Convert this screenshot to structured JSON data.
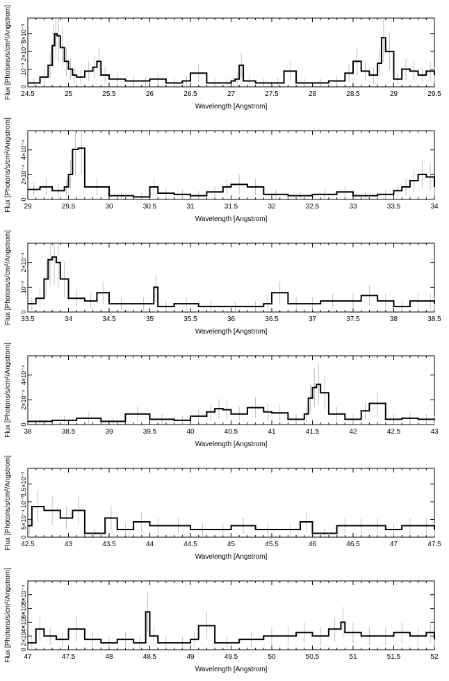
{
  "chart_data": [
    {
      "type": "line",
      "step": true,
      "xlim": [
        24.5,
        29.5
      ],
      "ylim": [
        0,
        0.0035
      ],
      "xticks": [
        24.5,
        25,
        25.5,
        26,
        26.5,
        27,
        27.5,
        28,
        28.5,
        29,
        29.5
      ],
      "xtick_labels": [
        "24.5",
        "25",
        "25.5",
        "26",
        "26.5",
        "27",
        "27.5",
        "28",
        "28.5",
        "29",
        "29.5"
      ],
      "ytick_labels": [
        "0",
        "10⁻³",
        "2×10⁻³",
        "3×10⁻³"
      ],
      "xlabel": "Wavelength [Angstrom]",
      "ylabel": "Flux [Photons/s/cm²/Angstrom]",
      "x": [
        24.5,
        24.65,
        24.75,
        24.8,
        24.83,
        24.86,
        24.9,
        24.95,
        25.0,
        25.05,
        25.1,
        25.2,
        25.3,
        25.35,
        25.4,
        25.5,
        25.7,
        25.9,
        26.0,
        26.2,
        26.4,
        26.5,
        26.7,
        26.9,
        27.0,
        27.05,
        27.1,
        27.15,
        27.3,
        27.5,
        27.65,
        27.8,
        28.0,
        28.2,
        28.4,
        28.5,
        28.6,
        28.7,
        28.8,
        28.85,
        28.9,
        29.0,
        29.1,
        29.2,
        29.3,
        29.4,
        29.5
      ],
      "y": [
        0.0002,
        0.0005,
        0.0011,
        0.0021,
        0.0027,
        0.0026,
        0.002,
        0.0013,
        0.0009,
        0.0006,
        0.0005,
        0.0008,
        0.001,
        0.0013,
        0.0006,
        0.0004,
        0.0003,
        0.0003,
        0.0004,
        0.0002,
        0.0003,
        0.0007,
        0.0002,
        0.0002,
        0.0003,
        0.0004,
        0.0011,
        0.0003,
        0.0002,
        0.0002,
        0.0008,
        0.0002,
        0.0002,
        0.0003,
        0.0007,
        0.0013,
        0.0008,
        0.0006,
        0.0012,
        0.0025,
        0.0018,
        0.0004,
        0.0009,
        0.0008,
        0.0006,
        0.0008,
        0.0006
      ]
    },
    {
      "type": "line",
      "step": true,
      "xlim": [
        29,
        34
      ],
      "ylim": [
        0,
        0.00055
      ],
      "xticks": [
        29,
        29.5,
        30,
        30.5,
        31,
        31.5,
        32,
        32.5,
        33,
        33.5,
        34
      ],
      "xtick_labels": [
        "29",
        "29.5",
        "30",
        "30.5",
        "31",
        "31.5",
        "32",
        "32.5",
        "33",
        "33.5",
        "34"
      ],
      "ytick_labels": [
        "0",
        "2×10⁻⁴",
        "4×10⁻⁴"
      ],
      "xlabel": "Wavelength [Angstrom]",
      "ylabel": "Flux [Photons/s/cm²/Angstrom]",
      "x": [
        29.0,
        29.15,
        29.3,
        29.45,
        29.5,
        29.55,
        29.62,
        29.7,
        30.0,
        30.3,
        30.5,
        30.6,
        30.8,
        31.0,
        31.2,
        31.4,
        31.5,
        31.7,
        31.9,
        32.2,
        32.5,
        32.8,
        33.0,
        33.3,
        33.5,
        33.6,
        33.7,
        33.8,
        33.9,
        34.0
      ],
      "y": [
        8e-05,
        0.0001,
        7e-05,
        0.0001,
        0.0002,
        0.0004,
        0.00041,
        0.0001,
        3e-05,
        2e-05,
        0.0001,
        5e-05,
        4e-05,
        3e-05,
        6e-05,
        0.0001,
        0.00012,
        0.0001,
        4e-05,
        3e-05,
        4e-05,
        6e-05,
        3e-05,
        4e-05,
        7e-05,
        0.0001,
        0.00015,
        0.0002,
        0.00018,
        0.0001
      ]
    },
    {
      "type": "line",
      "step": true,
      "xlim": [
        33.5,
        38.5
      ],
      "ylim": [
        0,
        0.0025
      ],
      "xticks": [
        33.5,
        34,
        34.5,
        35,
        35.5,
        36,
        36.5,
        37,
        37.5,
        38,
        38.5
      ],
      "xtick_labels": [
        "33.5",
        "34",
        "34.5",
        "35",
        "35.5",
        "36",
        "36.5",
        "37",
        "37.5",
        "38",
        "38.5"
      ],
      "ytick_labels": [
        "0",
        "10⁻³",
        "2×10⁻³"
      ],
      "xlabel": "Wavelength [Angstrom]",
      "ylabel": "Flux [Photons/s/cm²/Angstrom]",
      "x": [
        33.5,
        33.6,
        33.7,
        33.75,
        33.8,
        33.85,
        33.9,
        34.0,
        34.2,
        34.35,
        34.5,
        34.8,
        35.05,
        35.1,
        35.3,
        35.6,
        35.9,
        36.2,
        36.4,
        36.5,
        36.7,
        36.9,
        37.1,
        37.4,
        37.6,
        37.8,
        38.0,
        38.2,
        38.4,
        38.5
      ],
      "y": [
        0.0003,
        0.0005,
        0.0012,
        0.0019,
        0.002,
        0.0018,
        0.0012,
        0.0005,
        0.0004,
        0.0007,
        0.0003,
        0.0003,
        0.0009,
        0.0002,
        0.0003,
        0.0002,
        0.0002,
        0.0002,
        0.0003,
        0.0007,
        0.0003,
        0.0003,
        0.0004,
        0.0004,
        0.0006,
        0.0004,
        0.0002,
        0.0004,
        0.0004,
        0.0003
      ]
    },
    {
      "type": "line",
      "step": true,
      "xlim": [
        38,
        43
      ],
      "ylim": [
        0,
        0.00065
      ],
      "xticks": [
        38,
        38.5,
        39,
        39.5,
        40,
        40.5,
        41,
        41.5,
        42,
        42.5,
        43
      ],
      "xtick_labels": [
        "38",
        "38.5",
        "39",
        "39.5",
        "40",
        "40.5",
        "41",
        "41.5",
        "42",
        "42.5",
        "43"
      ],
      "ytick_labels": [
        "0",
        "2×10⁻⁴",
        "4×10⁻⁴"
      ],
      "xlabel": "Wavelength [Angstrom]",
      "ylabel": "Flux [Photons/s/cm²/Angstrom]",
      "x": [
        38.0,
        38.3,
        38.6,
        38.9,
        39.2,
        39.5,
        39.8,
        40.0,
        40.2,
        40.3,
        40.4,
        40.5,
        40.7,
        40.9,
        41.0,
        41.2,
        41.4,
        41.45,
        41.5,
        41.55,
        41.6,
        41.7,
        41.9,
        42.1,
        42.2,
        42.4,
        42.6,
        42.8,
        43.0
      ],
      "y": [
        3e-05,
        4e-05,
        6e-05,
        3e-05,
        0.0001,
        5e-05,
        4e-05,
        8e-05,
        0.00012,
        0.00015,
        0.00014,
        0.0001,
        0.00016,
        0.00012,
        0.00011,
        5e-05,
        0.0001,
        0.00025,
        0.00035,
        0.00038,
        0.0003,
        0.0001,
        5e-05,
        0.00013,
        0.0002,
        5e-05,
        6e-05,
        5e-05,
        4e-05
      ]
    },
    {
      "type": "line",
      "step": true,
      "xlim": [
        42.5,
        47.5
      ],
      "ylim": [
        0,
        0.0018
      ],
      "xticks": [
        42.5,
        43,
        43.5,
        44,
        44.5,
        45,
        45.5,
        46,
        46.5,
        47,
        47.5
      ],
      "xtick_labels": [
        "42.5",
        "43",
        "43.5",
        "44",
        "44.5",
        "45",
        "45.5",
        "46",
        "46.5",
        "47",
        "47.5"
      ],
      "ytick_labels": [
        "0",
        "5×10⁻⁴",
        "10⁻³",
        "1.5×10⁻³"
      ],
      "xlabel": "Wavelength [Angstrom]",
      "ylabel": "Flux [Photons/s/cm²/Angstrom]",
      "x": [
        42.5,
        42.55,
        42.7,
        42.9,
        43.05,
        43.2,
        43.45,
        43.6,
        43.8,
        44.0,
        44.2,
        44.5,
        44.8,
        45.0,
        45.3,
        45.6,
        45.85,
        46.0,
        46.3,
        46.5,
        46.7,
        46.9,
        47.1,
        47.3,
        47.5
      ],
      "y": [
        0.0003,
        0.0008,
        0.0007,
        0.0005,
        0.0007,
        0.0001,
        0.0005,
        0.0002,
        0.0004,
        0.0003,
        0.0003,
        0.0002,
        0.0002,
        0.0003,
        0.0002,
        0.0002,
        0.0004,
        0.0001,
        0.0003,
        0.0003,
        0.0003,
        0.0002,
        0.0003,
        0.0003,
        0.0002
      ]
    },
    {
      "type": "line",
      "step": true,
      "xlim": [
        47,
        52
      ],
      "ylim": [
        0,
        0.0001
      ],
      "xticks": [
        47,
        47.5,
        48,
        48.5,
        49,
        49.5,
        50,
        50.5,
        51,
        51.5,
        52
      ],
      "xtick_labels": [
        "47",
        "47.5",
        "48",
        "48.5",
        "49",
        "49.5",
        "50",
        "50.5",
        "51",
        "51.5",
        "52"
      ],
      "ytick_labels": [
        "0",
        "2×10⁻⁴",
        "4×10⁻⁴",
        "6×10⁻⁴",
        "8×10⁻⁴"
      ],
      "xlabel": "Wavelength [Angstrom]",
      "ylabel": "Flux [Photons/s/cm²/Angstrom]",
      "x": [
        47.0,
        47.1,
        47.2,
        47.35,
        47.5,
        47.7,
        47.9,
        48.1,
        48.3,
        48.45,
        48.5,
        48.6,
        48.8,
        49.0,
        49.1,
        49.3,
        49.6,
        49.9,
        50.1,
        50.3,
        50.5,
        50.7,
        50.85,
        50.9,
        51.1,
        51.3,
        51.5,
        51.7,
        51.9,
        52.0
      ],
      "y": [
        1e-05,
        3e-05,
        2e-05,
        1.5e-05,
        3e-05,
        1.5e-05,
        1e-05,
        1.5e-05,
        1e-05,
        5.5e-05,
        2e-05,
        1e-05,
        1e-05,
        1.5e-05,
        3.5e-05,
        1e-05,
        1.5e-05,
        2e-05,
        2e-05,
        2.5e-05,
        2e-05,
        3e-05,
        4e-05,
        2.5e-05,
        2e-05,
        2e-05,
        2.5e-05,
        2e-05,
        2.5e-05,
        1.5e-05
      ]
    }
  ]
}
